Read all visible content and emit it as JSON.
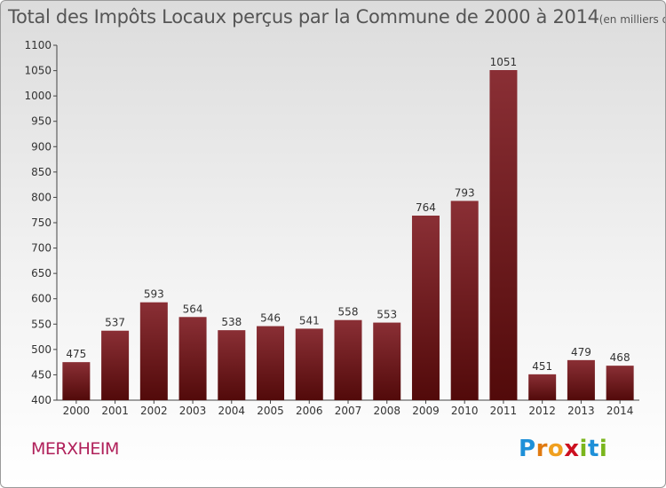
{
  "title": "Total des Impôts Locaux perçus par la Commune de 2000 à 2014",
  "unit": "(en milliers d'€)",
  "commune": "MERXHEIM",
  "logo": {
    "letters": [
      "P",
      "r",
      "o",
      "x",
      "i",
      "t",
      "i"
    ],
    "colors": [
      "#1e90d8",
      "#e07a10",
      "#f0a020",
      "#cc1020",
      "#7ab51d",
      "#1e90d8",
      "#7ab51d"
    ]
  },
  "colors": {
    "bar_light": "#8a2f35",
    "bar_dark": "#520a0a",
    "title": "#555555",
    "commune": "#b0205a"
  },
  "chart_data": {
    "type": "bar",
    "categories": [
      "2000",
      "2001",
      "2002",
      "2003",
      "2004",
      "2005",
      "2006",
      "2007",
      "2008",
      "2009",
      "2010",
      "2011",
      "2012",
      "2013",
      "2014"
    ],
    "values": [
      475,
      537,
      593,
      564,
      538,
      546,
      541,
      558,
      553,
      764,
      793,
      1051,
      451,
      479,
      468
    ],
    "data_labels": [
      "475",
      "537",
      "593",
      "564",
      "538",
      "546",
      "541",
      "558",
      "553",
      "764",
      "793",
      "1051",
      "451",
      "479",
      "468"
    ],
    "ylim": [
      400,
      1100
    ],
    "yticks": [
      "400",
      "450",
      "500",
      "550",
      "600",
      "650",
      "700",
      "750",
      "800",
      "850",
      "900",
      "950",
      "1000",
      "1050",
      "1100"
    ],
    "grid": false
  }
}
